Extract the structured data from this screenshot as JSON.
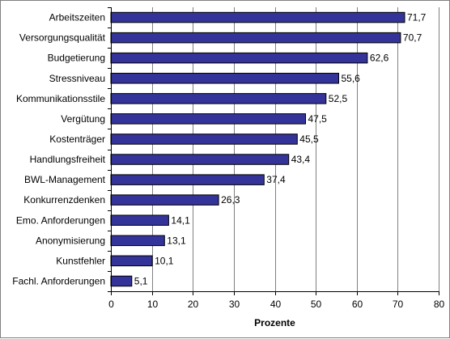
{
  "chart_data": {
    "type": "bar",
    "orientation": "horizontal",
    "categories": [
      "Arbeitszeiten",
      "Versorgungsqualität",
      "Budgetierung",
      "Stressniveau",
      "Kommunikationsstile",
      "Vergütung",
      "Kostenträger",
      "Handlungsfreiheit",
      "BWL-Management",
      "Konkurrenzdenken",
      "Emo. Anforderungen",
      "Anonymisierung",
      "Kunstfehler",
      "Fachl. Anforderungen"
    ],
    "values": [
      71.7,
      70.7,
      62.6,
      55.6,
      52.5,
      47.5,
      45.5,
      43.4,
      37.4,
      26.3,
      14.1,
      13.1,
      10.1,
      5.1
    ],
    "value_labels": [
      "71,7",
      "70,7",
      "62,6",
      "55,6",
      "52,5",
      "47,5",
      "45,5",
      "43,4",
      "37,4",
      "26,3",
      "14,1",
      "13,1",
      "10,1",
      "5,1"
    ],
    "xlabel": "Prozente",
    "xlim": [
      0,
      80
    ],
    "xticks": [
      0,
      10,
      20,
      30,
      40,
      50,
      60,
      70,
      80
    ],
    "grid": "vertical",
    "legend": "none",
    "bar_color": "#333399",
    "bar_edge_color": "#000000",
    "grid_color": "#808080"
  }
}
